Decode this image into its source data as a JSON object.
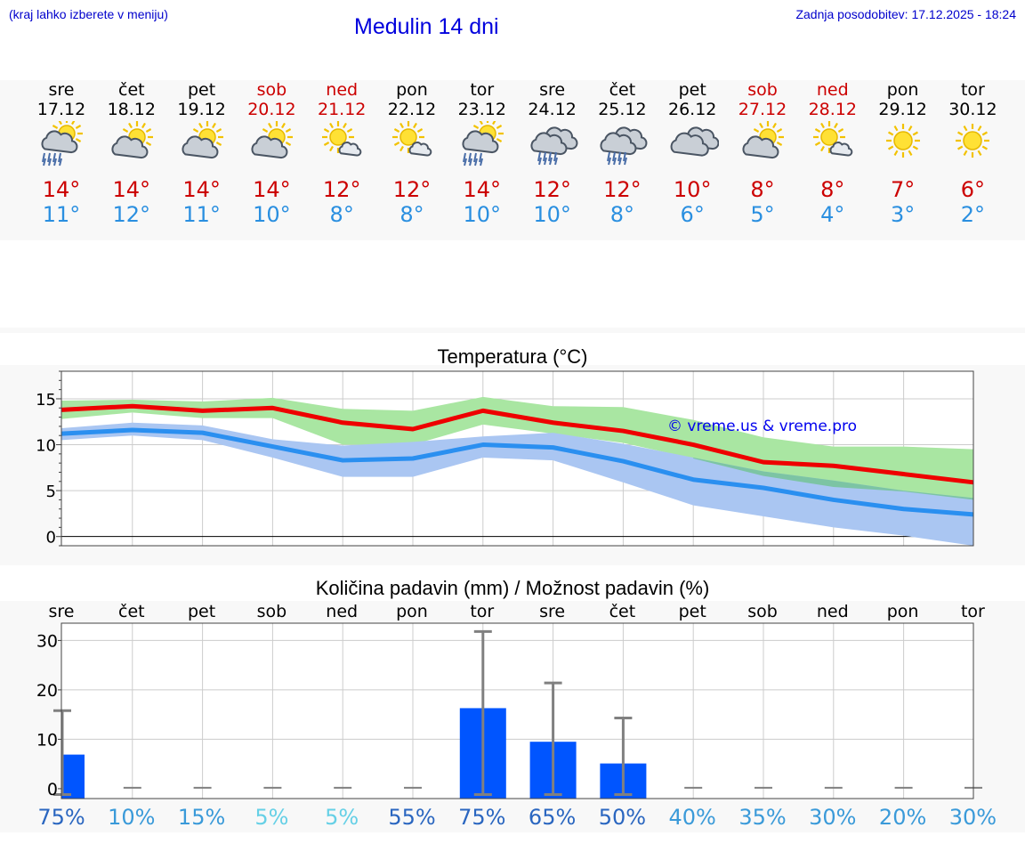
{
  "header": {
    "menu_hint": "(kraj lahko izberete v meniju)",
    "title": "Medulin 14 dni",
    "updated": "Zadnja posodobitev: 17.12.2025 - 18:24"
  },
  "days": [
    {
      "name": "sre",
      "date": "17.12",
      "weekend": false,
      "icon": "sun-cloud-rain-icon",
      "hi": "14°",
      "lo": "11°"
    },
    {
      "name": "čet",
      "date": "18.12",
      "weekend": false,
      "icon": "sun-cloud-icon",
      "hi": "14°",
      "lo": "12°"
    },
    {
      "name": "pet",
      "date": "19.12",
      "weekend": false,
      "icon": "sun-cloud-icon",
      "hi": "14°",
      "lo": "11°"
    },
    {
      "name": "sob",
      "date": "20.12",
      "weekend": true,
      "icon": "sun-cloud-icon",
      "hi": "14°",
      "lo": "10°"
    },
    {
      "name": "ned",
      "date": "21.12",
      "weekend": true,
      "icon": "sun-small-cloud-icon",
      "hi": "12°",
      "lo": "8°"
    },
    {
      "name": "pon",
      "date": "22.12",
      "weekend": false,
      "icon": "sun-small-cloud-icon",
      "hi": "12°",
      "lo": "8°"
    },
    {
      "name": "tor",
      "date": "23.12",
      "weekend": false,
      "icon": "sun-cloud-rain-icon",
      "hi": "14°",
      "lo": "10°"
    },
    {
      "name": "sre",
      "date": "24.12",
      "weekend": false,
      "icon": "cloud-rain-icon",
      "hi": "12°",
      "lo": "10°"
    },
    {
      "name": "čet",
      "date": "25.12",
      "weekend": false,
      "icon": "cloud-rain-icon",
      "hi": "12°",
      "lo": "8°"
    },
    {
      "name": "pet",
      "date": "26.12",
      "weekend": false,
      "icon": "cloud-icon",
      "hi": "10°",
      "lo": "6°"
    },
    {
      "name": "sob",
      "date": "27.12",
      "weekend": true,
      "icon": "sun-cloud-icon",
      "hi": "8°",
      "lo": "5°"
    },
    {
      "name": "ned",
      "date": "28.12",
      "weekend": true,
      "icon": "sun-small-cloud-icon",
      "hi": "8°",
      "lo": "4°"
    },
    {
      "name": "pon",
      "date": "29.12",
      "weekend": false,
      "icon": "sun-icon",
      "hi": "7°",
      "lo": "3°"
    },
    {
      "name": "tor",
      "date": "30.12",
      "weekend": false,
      "icon": "sun-icon",
      "hi": "6°",
      "lo": "2°"
    }
  ],
  "colors": {
    "max_line": "#ee0000",
    "max_band": "#a9e6a2",
    "min_line": "#2a8ff0",
    "min_band": "#aac6f2",
    "overlap": "#7cc4a4",
    "bar": "#0055ff",
    "whisker": "#808080",
    "wkend": "#cc0000",
    "precip_blue": "#2a66c0",
    "precip_mid": "#3a9ad9",
    "precip_light": "#66d0e6"
  },
  "chart_data": [
    {
      "type": "line",
      "title": "Temperatura (°C)",
      "ylim": [
        -1,
        18
      ],
      "yticks": [
        "0",
        "5",
        "10",
        "15"
      ],
      "watermark": "© vreme.us & vreme.pro",
      "series": [
        {
          "name": "max",
          "values": [
            13.8,
            14.2,
            13.7,
            14.0,
            12.4,
            11.7,
            13.7,
            12.4,
            11.5,
            10.0,
            8.1,
            7.7,
            6.8,
            5.9
          ],
          "band_low": [
            12.8,
            13.5,
            12.9,
            12.9,
            10.0,
            10.0,
            12.2,
            11.2,
            10.2,
            8.5,
            6.6,
            5.4,
            4.9,
            4.0
          ],
          "band_high": [
            14.8,
            14.9,
            14.7,
            15.1,
            13.9,
            13.7,
            15.2,
            14.2,
            14.1,
            12.7,
            10.8,
            9.8,
            9.8,
            9.5
          ]
        },
        {
          "name": "min",
          "values": [
            11.2,
            11.6,
            11.3,
            9.8,
            8.3,
            8.5,
            10.0,
            9.7,
            8.2,
            6.2,
            5.3,
            4.0,
            3.0,
            2.4
          ],
          "band_low": [
            10.5,
            11.0,
            10.5,
            8.6,
            6.5,
            6.5,
            8.6,
            8.3,
            5.9,
            3.4,
            2.2,
            1.0,
            0.1,
            -1.0
          ],
          "band_high": [
            11.8,
            12.4,
            12.1,
            10.6,
            9.9,
            10.3,
            10.9,
            11.3,
            10.1,
            8.6,
            7.1,
            6.1,
            5.0,
            4.2
          ]
        }
      ]
    },
    {
      "type": "bar",
      "title": "Količina padavin (mm) / Možnost padavin (%)",
      "categories": [
        "sre",
        "čet",
        "pet",
        "sob",
        "ned",
        "pon",
        "tor",
        "sre",
        "čet",
        "pet",
        "sob",
        "ned",
        "pon",
        "tor"
      ],
      "ylim": [
        -2,
        33.5
      ],
      "yticks": [
        "0",
        "10",
        "20",
        "30"
      ],
      "values": [
        6.9,
        0,
        0,
        0,
        0,
        0,
        16.3,
        9.5,
        5.1,
        0,
        0,
        0,
        0,
        0
      ],
      "max_values": [
        15.8,
        0,
        0,
        0,
        0,
        0,
        31.8,
        21.4,
        14.3,
        0,
        0,
        0,
        0,
        0
      ],
      "probability": [
        "75%",
        "10%",
        "15%",
        "5%",
        "5%",
        "55%",
        "75%",
        "65%",
        "50%",
        "40%",
        "35%",
        "30%",
        "20%",
        "30%"
      ]
    }
  ]
}
